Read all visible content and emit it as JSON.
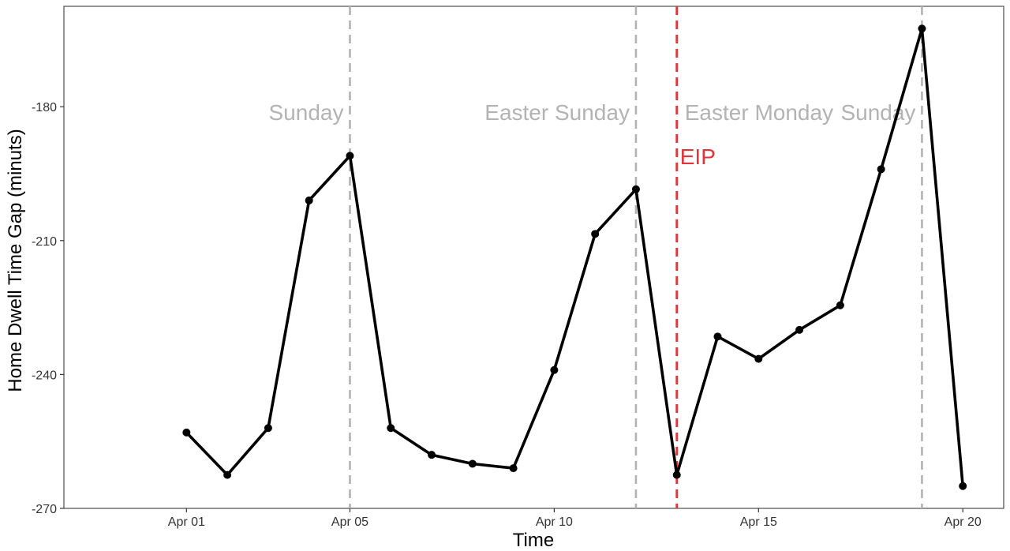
{
  "chart_data": {
    "type": "line",
    "title": "",
    "xlabel": "Time",
    "ylabel": "Home Dwell Time Gap (minuts)",
    "x": [
      "2020-04-01",
      "2020-04-02",
      "2020-04-03",
      "2020-04-04",
      "2020-04-05",
      "2020-04-06",
      "2020-04-07",
      "2020-04-08",
      "2020-04-09",
      "2020-04-10",
      "2020-04-11",
      "2020-04-12",
      "2020-04-13",
      "2020-04-14",
      "2020-04-15",
      "2020-04-16",
      "2020-04-17",
      "2020-04-18",
      "2020-04-19",
      "2020-04-20"
    ],
    "series": [
      {
        "values": [
          -253,
          -262.5,
          -252,
          -201,
          -191,
          -252,
          -258,
          -260,
          -261,
          -239,
          -208.5,
          -198.5,
          -262.5,
          -231.5,
          -236.5,
          -230,
          -224.5,
          -194,
          -162.5,
          -265
        ]
      }
    ],
    "xlim": [
      "2020-03-29",
      "2020-04-21"
    ],
    "ylim": [
      -270,
      -157.5
    ],
    "x_ticks": [
      {
        "date": "2020-04-01",
        "label": "Apr 01"
      },
      {
        "date": "2020-04-05",
        "label": "Apr 05"
      },
      {
        "date": "2020-04-10",
        "label": "Apr 10"
      },
      {
        "date": "2020-04-15",
        "label": "Apr 15"
      },
      {
        "date": "2020-04-20",
        "label": "Apr 20"
      }
    ],
    "y_ticks": [
      -180,
      -210,
      -240,
      -270
    ],
    "grid": false,
    "line_color": "#000000",
    "reference_lines": [
      {
        "date": "2020-04-05",
        "label": "Sunday",
        "color": "#b3b3b3",
        "label_side": "left"
      },
      {
        "date": "2020-04-12",
        "label": "Easter Sunday",
        "color": "#b3b3b3",
        "label_side": "left"
      },
      {
        "date": "2020-04-13",
        "label": "Easter Monday",
        "color": "#b3b3b3",
        "label_side": "right"
      },
      {
        "date": "2020-04-19",
        "label": "Sunday",
        "color": "#b3b3b3",
        "label_side": "left"
      }
    ],
    "eip_line": {
      "date": "2020-04-13",
      "label": "EIP",
      "color": "#e3343a"
    }
  }
}
